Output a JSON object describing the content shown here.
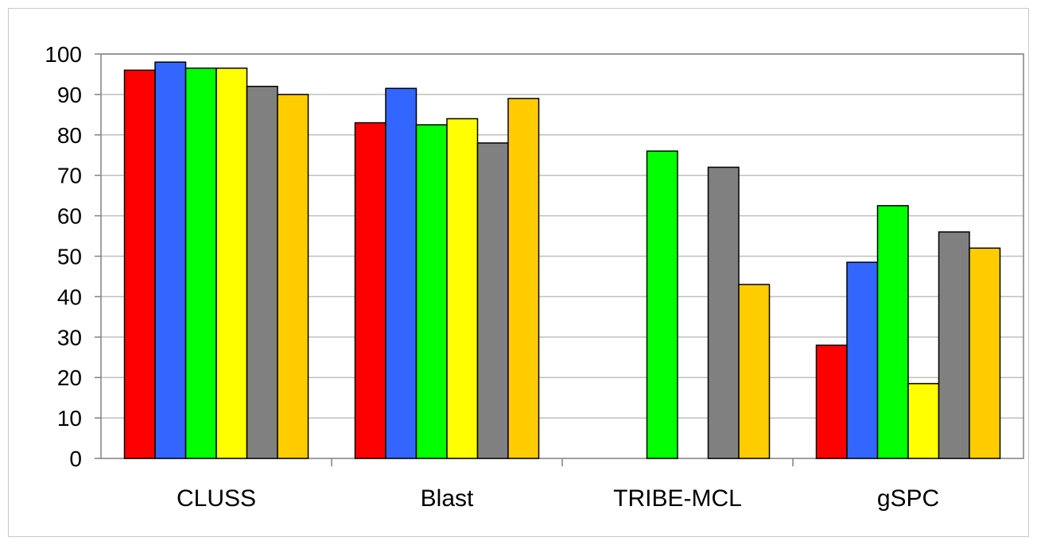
{
  "chart_data": {
    "type": "bar",
    "categories": [
      "CLUSS",
      "Blast",
      "TRIBE-MCL",
      "gSPC"
    ],
    "ylim": [
      0,
      100
    ],
    "yticks": [
      0,
      10,
      20,
      30,
      40,
      50,
      60,
      70,
      80,
      90,
      100
    ],
    "grid": true,
    "legend": "none",
    "series": [
      {
        "color": "#ff0000",
        "values": [
          96,
          83,
          0,
          28
        ]
      },
      {
        "color": "#3366ff",
        "values": [
          98,
          91.5,
          0,
          48.5
        ]
      },
      {
        "color": "#00ff00",
        "values": [
          96.5,
          82.5,
          76,
          62.5
        ]
      },
      {
        "color": "#ffff00",
        "values": [
          96.5,
          84,
          0,
          18.5
        ]
      },
      {
        "color": "#808080",
        "values": [
          92,
          78,
          72,
          56
        ]
      },
      {
        "color": "#ffcc00",
        "values": [
          90,
          89,
          43,
          52
        ]
      }
    ]
  }
}
